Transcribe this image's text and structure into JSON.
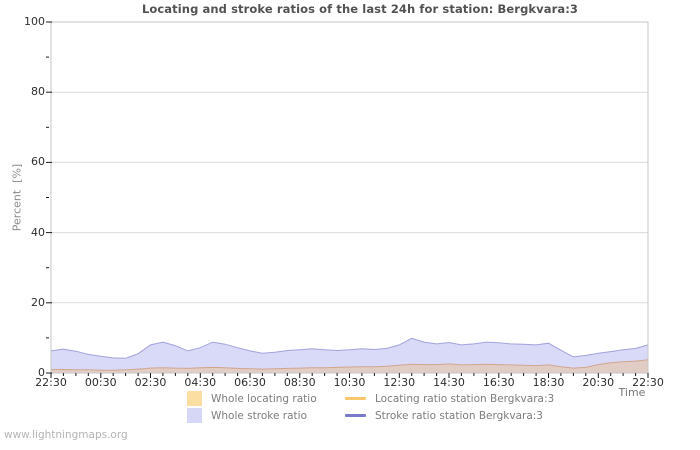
{
  "page": {
    "watermark": "www.lightningmaps.org"
  },
  "chart_data": {
    "type": "area",
    "title": "Locating and stroke ratios of the last 24h for station: Bergkvara:3",
    "ylabel": "Percent  [%]",
    "xlabel": "Time",
    "ylim": [
      0,
      100
    ],
    "grid": "horizontal-only",
    "legend_position": "bottom-center",
    "y_major_ticks": [
      0,
      20,
      40,
      60,
      80,
      100
    ],
    "y_minor_ticks": [
      10,
      30,
      50,
      70,
      90
    ],
    "x_tick_labels": [
      "22:30",
      "00:30",
      "02:30",
      "04:30",
      "06:30",
      "08:30",
      "10:30",
      "12:30",
      "14:30",
      "16:30",
      "18:30",
      "20:30",
      "22:30"
    ],
    "x_minor_tick_interval": "30min",
    "x": [
      "22:30",
      "23:00",
      "23:30",
      "00:00",
      "00:30",
      "01:00",
      "01:30",
      "02:00",
      "02:30",
      "03:00",
      "03:30",
      "04:00",
      "04:30",
      "05:00",
      "05:30",
      "06:00",
      "06:30",
      "07:00",
      "07:30",
      "08:00",
      "08:30",
      "09:00",
      "09:30",
      "10:00",
      "10:30",
      "11:00",
      "11:30",
      "12:00",
      "12:30",
      "13:00",
      "13:30",
      "14:00",
      "14:30",
      "15:00",
      "15:30",
      "16:00",
      "16:30",
      "17:00",
      "17:30",
      "18:00",
      "18:30",
      "19:00",
      "19:30",
      "20:00",
      "20:30",
      "21:00",
      "21:30",
      "22:00",
      "22:30"
    ],
    "series": [
      {
        "id": "whole-locating-ratio",
        "name": "Whole locating ratio",
        "kind": "area",
        "legend_color": "#fbdfa2",
        "plot_fill": "#e1cdc6",
        "values": [
          1.0,
          1.0,
          0.9,
          0.9,
          0.8,
          0.8,
          0.9,
          1.1,
          1.4,
          1.5,
          1.4,
          1.3,
          1.5,
          1.6,
          1.5,
          1.3,
          1.2,
          1.1,
          1.2,
          1.3,
          1.4,
          1.5,
          1.5,
          1.6,
          1.7,
          1.8,
          1.8,
          1.9,
          2.2,
          2.5,
          2.4,
          2.4,
          2.6,
          2.3,
          2.4,
          2.5,
          2.4,
          2.3,
          2.2,
          2.1,
          2.3,
          1.8,
          1.4,
          1.6,
          2.4,
          2.9,
          3.2,
          3.4,
          3.8
        ]
      },
      {
        "id": "whole-stroke-ratio",
        "name": "Whole stroke ratio",
        "kind": "area",
        "legend_color": "#d6d6f7",
        "plot_fill": "#d9d9f8",
        "values": [
          6.3,
          6.8,
          6.2,
          5.3,
          4.8,
          4.3,
          4.2,
          5.5,
          8.0,
          8.8,
          7.8,
          6.3,
          7.2,
          8.8,
          8.2,
          7.2,
          6.3,
          5.6,
          5.9,
          6.4,
          6.6,
          6.9,
          6.6,
          6.4,
          6.6,
          6.9,
          6.7,
          7.0,
          8.0,
          9.9,
          8.8,
          8.3,
          8.7,
          8.0,
          8.3,
          8.8,
          8.6,
          8.3,
          8.2,
          8.0,
          8.5,
          6.5,
          4.6,
          5.0,
          5.6,
          6.1,
          6.6,
          7.0,
          8.0
        ]
      },
      {
        "id": "locating-ratio-station",
        "name": "Locating ratio station Bergkvara:3",
        "kind": "line",
        "legend_color": "#f8c66d",
        "plot_stroke": "#cfa184",
        "values": [
          1.0,
          1.0,
          0.9,
          0.9,
          0.8,
          0.8,
          0.9,
          1.1,
          1.4,
          1.5,
          1.4,
          1.3,
          1.5,
          1.6,
          1.5,
          1.3,
          1.2,
          1.1,
          1.2,
          1.3,
          1.4,
          1.5,
          1.5,
          1.6,
          1.7,
          1.8,
          1.8,
          1.9,
          2.2,
          2.5,
          2.4,
          2.4,
          2.6,
          2.3,
          2.4,
          2.5,
          2.4,
          2.3,
          2.2,
          2.1,
          2.3,
          1.8,
          1.4,
          1.6,
          2.4,
          2.9,
          3.2,
          3.4,
          3.8
        ]
      },
      {
        "id": "stroke-ratio-station",
        "name": "Stroke ratio station Bergkvara:3",
        "kind": "line",
        "legend_color": "#7a7acc",
        "plot_stroke": "#9a9ad9",
        "values": [
          6.3,
          6.8,
          6.2,
          5.3,
          4.8,
          4.3,
          4.2,
          5.5,
          8.0,
          8.8,
          7.8,
          6.3,
          7.2,
          8.8,
          8.2,
          7.2,
          6.3,
          5.6,
          5.9,
          6.4,
          6.6,
          6.9,
          6.6,
          6.4,
          6.6,
          6.9,
          6.7,
          7.0,
          8.0,
          9.9,
          8.8,
          8.3,
          8.7,
          8.0,
          8.3,
          8.8,
          8.6,
          8.3,
          8.2,
          8.0,
          8.5,
          6.5,
          4.6,
          5.0,
          5.6,
          6.1,
          6.6,
          7.0,
          8.0
        ]
      }
    ],
    "colors": {
      "grid": "#dcdcdc",
      "frame": "#c6c6c6",
      "tick": "#1a1a1a",
      "title_text": "#525252",
      "axis_text": "#2e2e2e",
      "legend_text": "#7d7d7d"
    }
  },
  "legend_layout": {
    "order": [
      "whole-locating-ratio",
      "locating-ratio-station",
      "whole-stroke-ratio",
      "stroke-ratio-station"
    ]
  }
}
